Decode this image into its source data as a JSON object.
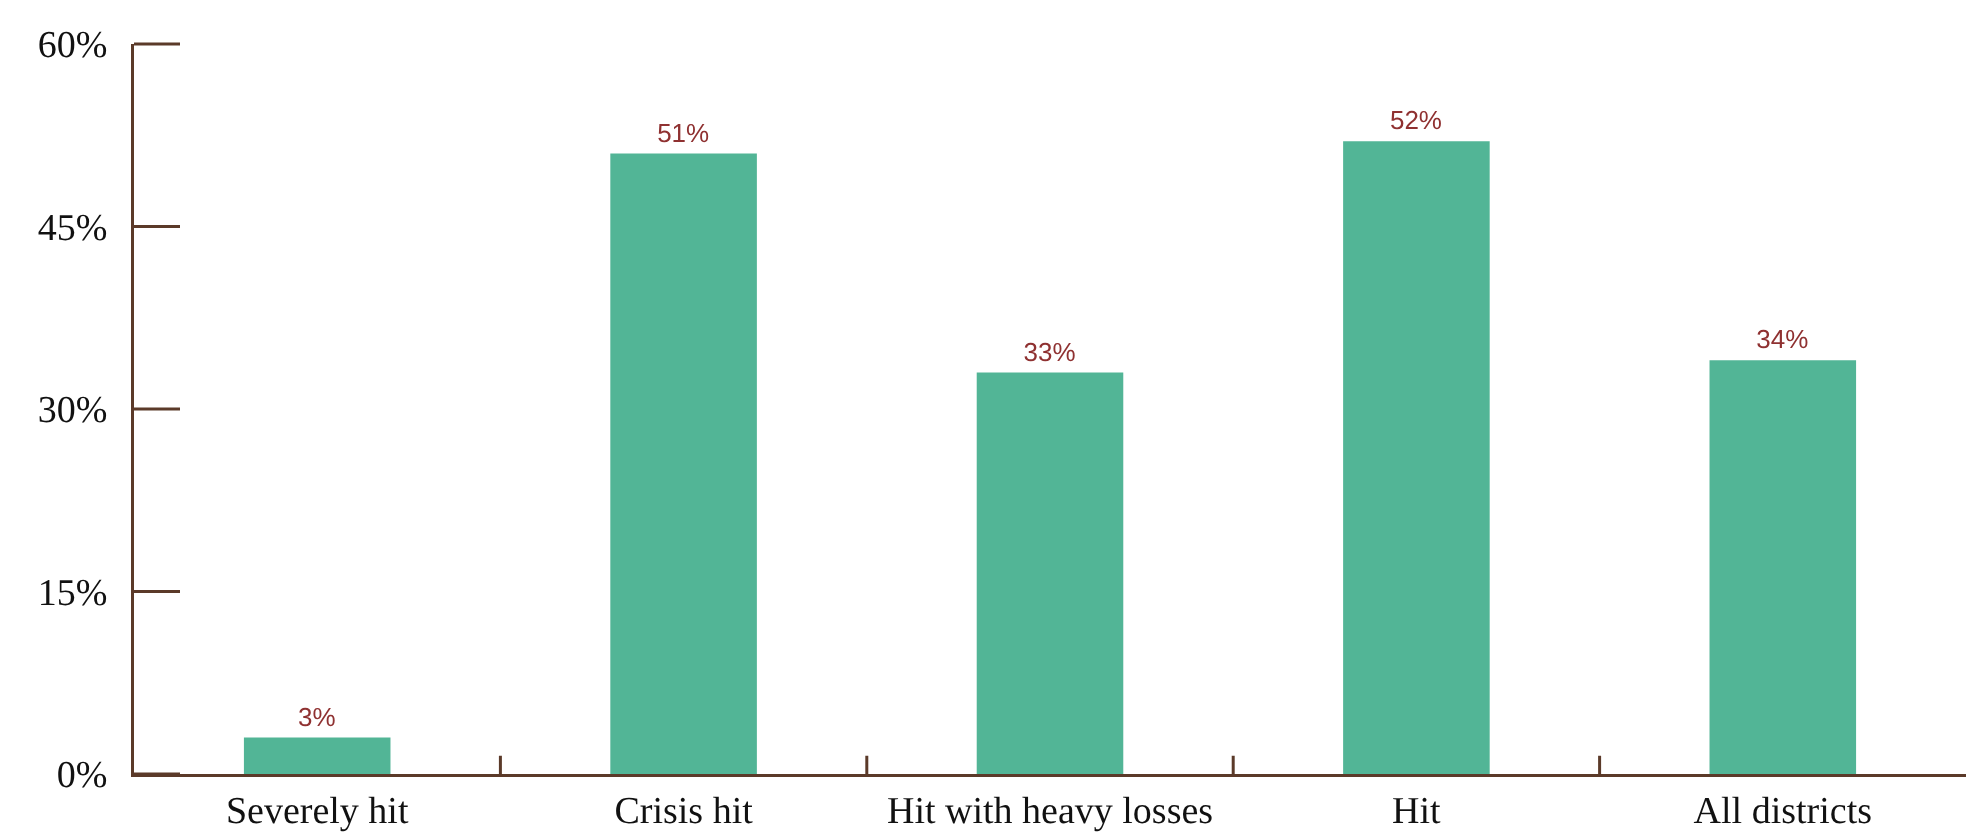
{
  "chart_data": {
    "type": "bar",
    "categories": [
      "Severely hit",
      "Crisis hit",
      "Hit with heavy losses",
      "Hit",
      "All districts"
    ],
    "values": [
      3,
      51,
      33,
      52,
      34
    ],
    "value_labels": [
      "3%",
      "51%",
      "33%",
      "52%",
      "34%"
    ],
    "color": "#52b596",
    "ylim": [
      0,
      60
    ],
    "yticks": [
      {
        "value": 0,
        "label": "0%"
      },
      {
        "value": 15,
        "label": "15%"
      },
      {
        "value": 30,
        "label": "30%"
      },
      {
        "value": 45,
        "label": "45%"
      },
      {
        "value": 60,
        "label": "60%"
      }
    ],
    "grid": false
  }
}
